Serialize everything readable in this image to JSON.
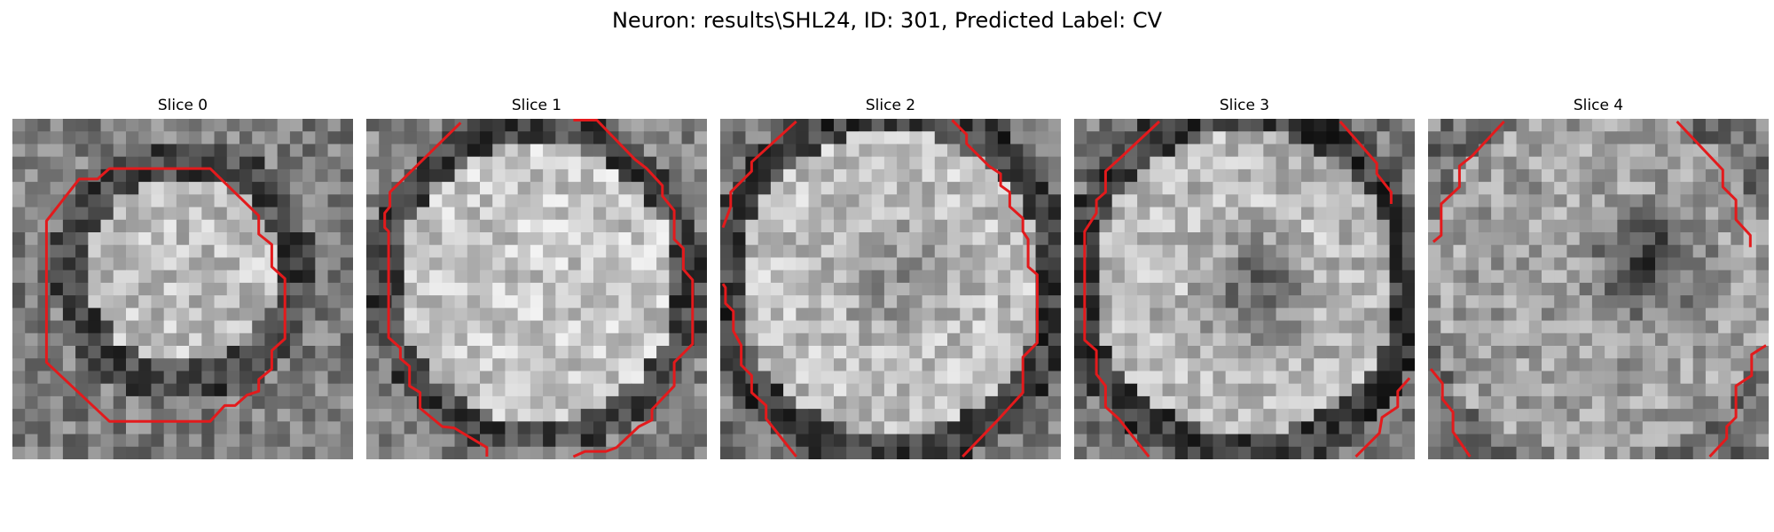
{
  "figure": {
    "title": "Neuron: results\\SHL24, ID: 301, Predicted Label: CV"
  },
  "colors": {
    "contour": "#e31a1c",
    "background": "#ffffff"
  },
  "panels": [
    {
      "title": "Slice 0"
    },
    {
      "title": "Slice 1"
    },
    {
      "title": "Slice 2"
    },
    {
      "title": "Slice 3"
    },
    {
      "title": "Slice 4"
    }
  ]
}
